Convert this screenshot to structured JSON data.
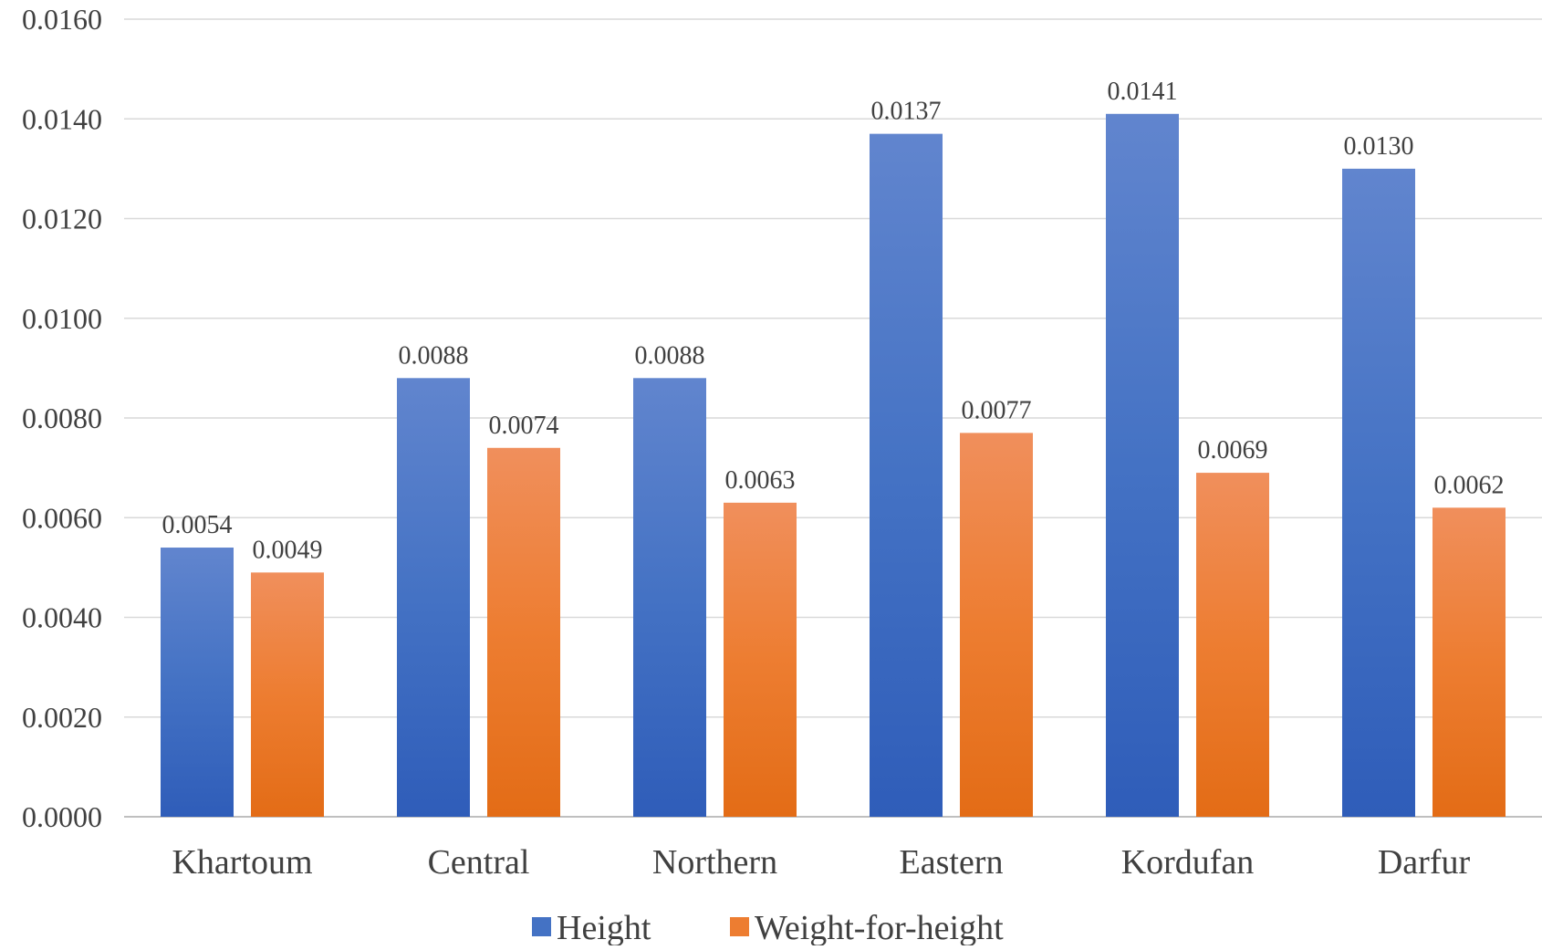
{
  "chart_data": {
    "type": "bar",
    "title": "",
    "xlabel": "",
    "ylabel": "",
    "categories": [
      "Khartoum",
      "Central",
      "Northern",
      "Eastern",
      "Kordufan",
      "Darfur"
    ],
    "series": [
      {
        "name": "Height",
        "values": [
          0.0054,
          0.0088,
          0.0088,
          0.0137,
          0.0141,
          0.013
        ],
        "labels": [
          "0.0054",
          "0.0088",
          "0.0088",
          "0.0137",
          "0.0141",
          "0.0130"
        ],
        "color": "#4472C4",
        "color_light": "#6185CE",
        "color_dark": "#2F5DB9"
      },
      {
        "name": "Weight-for-height",
        "values": [
          0.0049,
          0.0074,
          0.0063,
          0.0077,
          0.0069,
          0.0062
        ],
        "labels": [
          "0.0049",
          "0.0074",
          "0.0063",
          "0.0077",
          "0.0069",
          "0.0062"
        ],
        "color": "#ED7D31",
        "color_light": "#F08F5C",
        "color_dark": "#E36C16"
      }
    ],
    "ylim": [
      0,
      0.016
    ],
    "yticks": [
      0,
      0.002,
      0.004,
      0.006,
      0.008,
      0.01,
      0.012,
      0.014,
      0.016
    ],
    "ytick_labels": [
      "0.0000",
      "0.0020",
      "0.0040",
      "0.0060",
      "0.0080",
      "0.0100",
      "0.0120",
      "0.0140",
      "0.0160"
    ],
    "grid": true,
    "legend_position": "bottom"
  }
}
